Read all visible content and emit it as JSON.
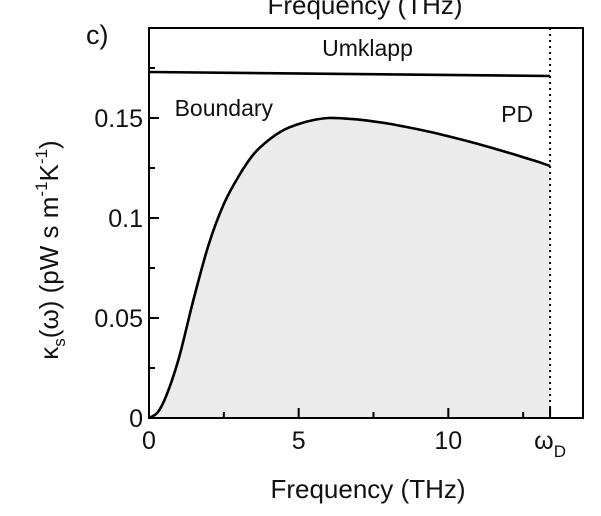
{
  "chart_data": {
    "type": "area",
    "panel_label": "c)",
    "top_cut_title": "Frequency (THz)",
    "xlabel": "Frequency (THz)",
    "ylabel_main": "κ",
    "ylabel_sub": "s",
    "ylabel_rest": "(ω) (pW s m",
    "ylabel_exp1": "-1",
    "ylabel_K": "K",
    "ylabel_exp2": "-1",
    "ylabel_close": ")",
    "xlim": [
      0,
      14.5
    ],
    "ylim": [
      0,
      0.195
    ],
    "x_ticks": [
      {
        "value": 0,
        "label": "0"
      },
      {
        "value": 5,
        "label": "5"
      },
      {
        "value": 10,
        "label": "10"
      }
    ],
    "x_minor_ticks": [
      2.5,
      7.5,
      12.5
    ],
    "omega_d": {
      "value": 13.4,
      "symbol": "ω",
      "subscript": "D"
    },
    "y_ticks": [
      {
        "value": 0,
        "label": "0"
      },
      {
        "value": 0.05,
        "label": "0.05"
      },
      {
        "value": 0.1,
        "label": "0.1"
      },
      {
        "value": 0.15,
        "label": "0.15"
      }
    ],
    "y_minor_ticks": [
      0.025,
      0.075,
      0.125,
      0.175
    ],
    "annotations": [
      {
        "text": "Umklapp",
        "x": 7.3,
        "y": 0.181
      },
      {
        "text": "Boundary",
        "x": 2.5,
        "y": 0.151
      },
      {
        "text": "PD",
        "x": 12.3,
        "y": 0.148
      }
    ],
    "series": [
      {
        "kind": "filled-curve",
        "x": [
          0,
          0.3,
          0.6,
          1,
          1.5,
          2,
          2.5,
          3,
          3.5,
          4,
          4.5,
          5,
          5.5,
          6,
          6.5,
          7,
          7.5,
          8,
          8.5,
          9,
          9.5,
          10,
          10.5,
          11,
          11.5,
          12,
          12.5,
          13,
          13.4
        ],
        "y": [
          0,
          0.003,
          0.012,
          0.03,
          0.06,
          0.087,
          0.107,
          0.121,
          0.132,
          0.139,
          0.144,
          0.147,
          0.149,
          0.15,
          0.1498,
          0.1492,
          0.1483,
          0.1472,
          0.1458,
          0.1443,
          0.1427,
          0.1409,
          0.139,
          0.137,
          0.1349,
          0.1327,
          0.1304,
          0.1281,
          0.126
        ],
        "fill": "#ebebeb",
        "stroke": "#000000"
      },
      {
        "kind": "line",
        "x": [
          0,
          13.4
        ],
        "y": [
          0.173,
          0.171
        ],
        "stroke": "#000000"
      }
    ]
  }
}
